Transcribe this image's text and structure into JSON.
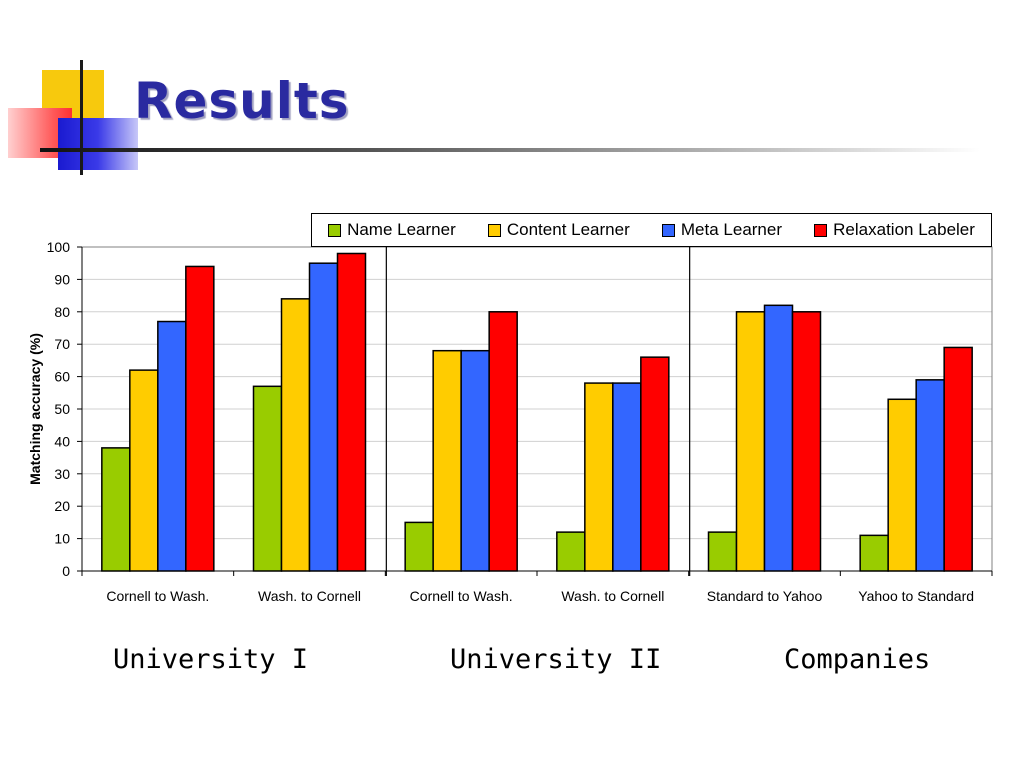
{
  "slide": {
    "title": "Results"
  },
  "colors": {
    "name_learner": "#99cc00",
    "content_learner": "#ffcc00",
    "meta_learner": "#3366ff",
    "relaxation_labeler": "#ff0000",
    "title": "#2a2aa0"
  },
  "group_labels": [
    "University I",
    "University II",
    "Companies"
  ],
  "chart_data": {
    "type": "bar",
    "title": "",
    "xlabel": "",
    "ylabel": "Matching accuracy (%)",
    "ylim": [
      0,
      100
    ],
    "yticks": [
      0,
      10,
      20,
      30,
      40,
      50,
      60,
      70,
      80,
      90,
      100
    ],
    "grid": true,
    "legend_position": "top",
    "categories": [
      "Cornell to Wash.",
      "Wash. to Cornell",
      "Cornell to Wash.",
      "Wash. to Cornell",
      "Standard to Yahoo",
      "Yahoo to Standard"
    ],
    "series": [
      {
        "name": "Name Learner",
        "color": "#99cc00",
        "values": [
          38,
          57,
          15,
          12,
          12,
          11
        ]
      },
      {
        "name": "Content Learner",
        "color": "#ffcc00",
        "values": [
          62,
          84,
          68,
          58,
          80,
          53
        ]
      },
      {
        "name": "Meta Learner",
        "color": "#3366ff",
        "values": [
          77,
          95,
          68,
          58,
          82,
          59
        ]
      },
      {
        "name": "Relaxation Labeler",
        "color": "#ff0000",
        "values": [
          94,
          98,
          80,
          66,
          80,
          69
        ]
      }
    ]
  }
}
